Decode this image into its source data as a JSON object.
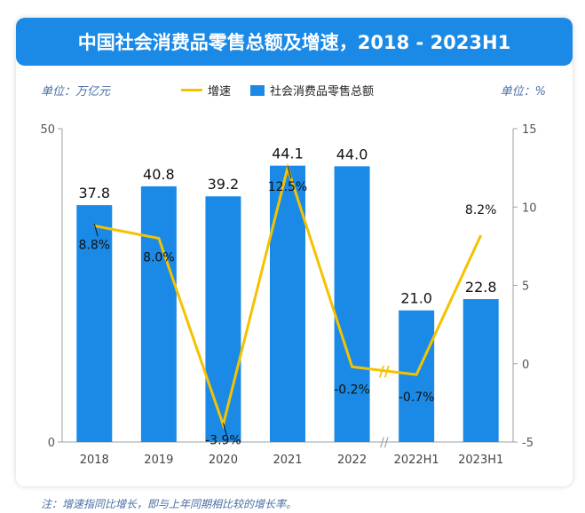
{
  "header": {
    "title": "中国社会消费品零售总额及增速，2018 - 2023H1"
  },
  "units": {
    "left": "单位：万亿元",
    "right": "单位：%"
  },
  "legend": {
    "line": "增速",
    "bar": "社会消费品零售总额"
  },
  "footnote": "注：增速指同比增长，即与上年同期相比较的增长率。",
  "colors": {
    "bar": "#1a8ae6",
    "line": "#f5c200",
    "title_bg": "#1a8ae6"
  },
  "chart_data": {
    "type": "bar",
    "categories": [
      "2018",
      "2019",
      "2020",
      "2021",
      "2022",
      "2022H1",
      "2023H1"
    ],
    "series": [
      {
        "name": "社会消费品零售总额",
        "type": "bar",
        "axis": "left",
        "values": [
          37.8,
          40.8,
          39.2,
          44.1,
          44.0,
          21.0,
          22.8
        ],
        "labels": [
          "37.8",
          "40.8",
          "39.2",
          "44.1",
          "44.0",
          "21.0",
          "22.8"
        ]
      },
      {
        "name": "增速",
        "type": "line",
        "axis": "right",
        "values": [
          8.8,
          8.0,
          -3.9,
          12.5,
          -0.2,
          -0.7,
          8.2
        ],
        "labels": [
          "8.8%",
          "8.0%",
          "-3.9%",
          "12.5%",
          "-0.2%",
          "-0.7%",
          "8.2%"
        ]
      }
    ],
    "y_left": {
      "ticks": [
        "0",
        "50"
      ],
      "lim": [
        0,
        50
      ]
    },
    "y_right": {
      "ticks": [
        "-5",
        "0",
        "5",
        "10",
        "15"
      ],
      "lim": [
        -5,
        15
      ]
    },
    "axis_break_between": [
      "2022",
      "2022H1"
    ],
    "grid": false,
    "legend_position": "top-center"
  }
}
